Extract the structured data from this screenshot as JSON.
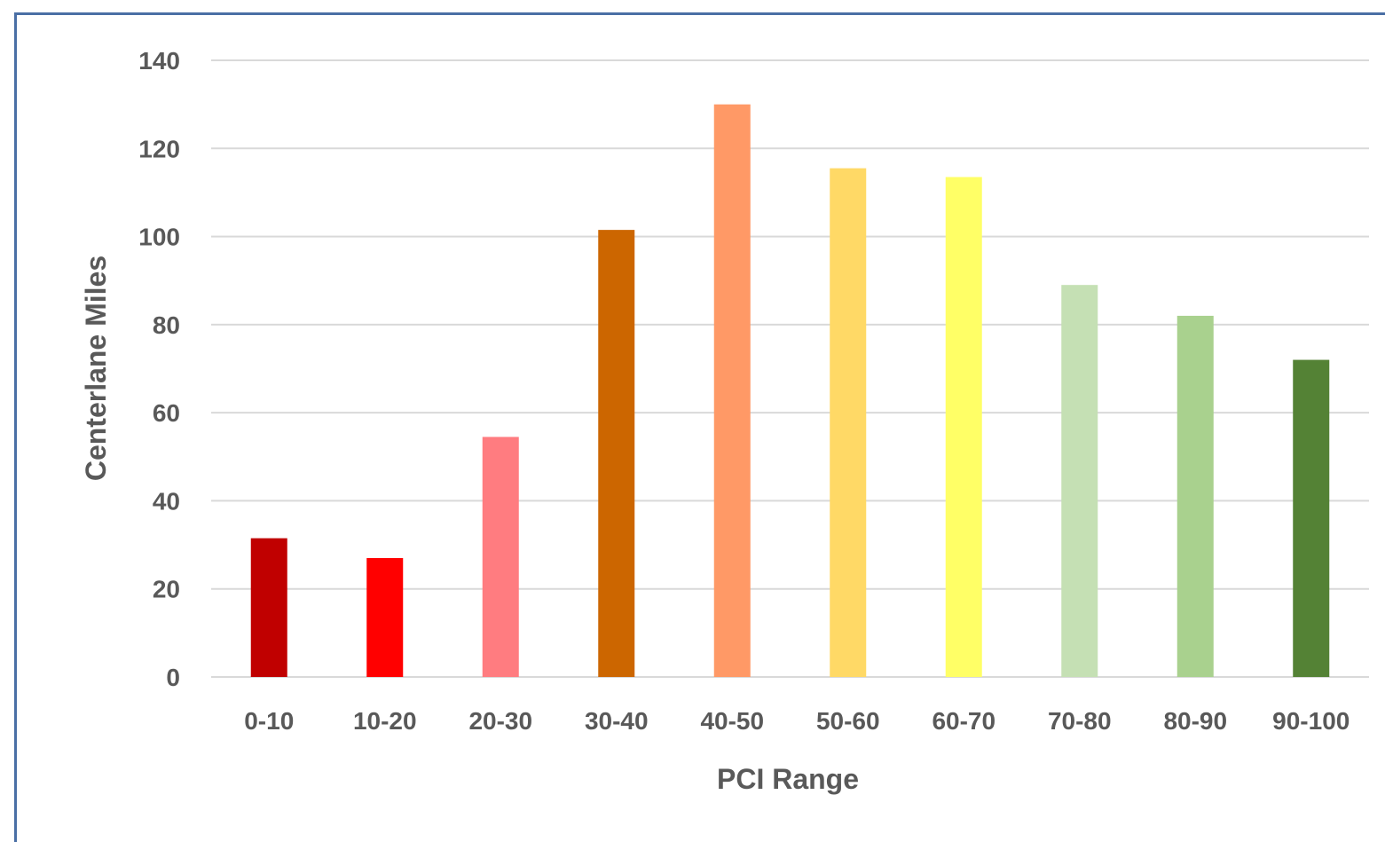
{
  "chart_data": {
    "type": "bar",
    "title": "",
    "xlabel": "PCI Range",
    "ylabel": "Centerlane Miles",
    "categories": [
      "0-10",
      "10-20",
      "20-30",
      "30-40",
      "40-50",
      "50-60",
      "60-70",
      "70-80",
      "80-90",
      "90-100"
    ],
    "values": [
      31.5,
      27,
      54.5,
      101.5,
      130,
      115.5,
      113.5,
      89,
      82,
      72
    ],
    "colors": [
      "#C00000",
      "#FF0000",
      "#FF7C80",
      "#CC6600",
      "#FF9966",
      "#FFD966",
      "#FFFF66",
      "#C5E0B4",
      "#A9D18E",
      "#548235"
    ],
    "ylim": [
      0,
      140
    ],
    "yticks": [
      "0",
      "20",
      "40",
      "60",
      "80",
      "100",
      "120",
      "140"
    ],
    "grid": true,
    "legend": "none"
  }
}
